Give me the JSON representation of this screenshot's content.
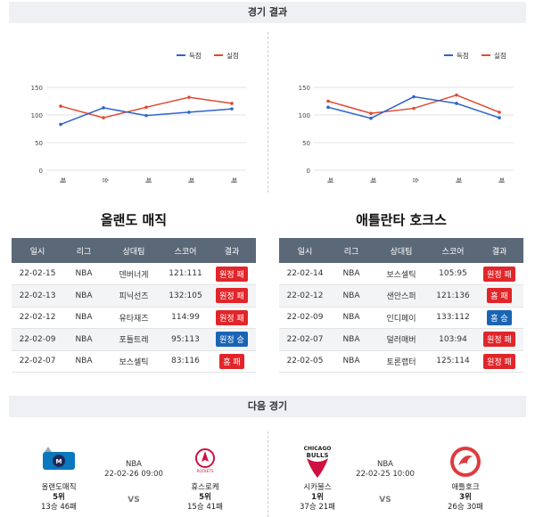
{
  "sections": {
    "results": "경기 결과",
    "next": "다음 경기"
  },
  "charts": [
    {
      "legend": {
        "score": "득점",
        "allowed": "실점"
      },
      "yticks": [
        "150",
        "100",
        "50",
        "0"
      ],
      "ylim": [
        0,
        150
      ],
      "xlabels": [
        "패",
        "승",
        "패",
        "패",
        "패"
      ],
      "score": [
        83,
        113,
        99,
        105,
        111
      ],
      "allowed": [
        116,
        95,
        114,
        132,
        121
      ]
    },
    {
      "legend": {
        "score": "득점",
        "allowed": "실점"
      },
      "yticks": [
        "150",
        "100",
        "50",
        "0"
      ],
      "ylim": [
        0,
        150
      ],
      "xlabels": [
        "패",
        "패",
        "승",
        "패",
        "패"
      ],
      "score": [
        114,
        94,
        133,
        121,
        95
      ],
      "allowed": [
        125,
        103,
        112,
        136,
        105
      ]
    }
  ],
  "chart_data": [
    {
      "type": "line",
      "x": [
        "패",
        "승",
        "패",
        "패",
        "패"
      ],
      "series": [
        {
          "name": "득점",
          "values": [
            83,
            113,
            99,
            105,
            111
          ]
        },
        {
          "name": "실점",
          "values": [
            116,
            95,
            114,
            132,
            121
          ]
        }
      ],
      "ylim": [
        0,
        150
      ],
      "legend": "top-right",
      "grid": true
    },
    {
      "type": "line",
      "x": [
        "패",
        "패",
        "승",
        "패",
        "패"
      ],
      "series": [
        {
          "name": "득점",
          "values": [
            114,
            94,
            133,
            121,
            95
          ]
        },
        {
          "name": "실점",
          "values": [
            125,
            103,
            112,
            136,
            105
          ]
        }
      ],
      "ylim": [
        0,
        150
      ],
      "legend": "top-right",
      "grid": true
    }
  ],
  "colors": {
    "score": "#2f63c9",
    "allowed": "#e04a2f",
    "lose_badge": "#e0262a",
    "win_badge": "#1a64b4"
  },
  "teams": [
    {
      "name": "올랜도 매직",
      "headers": [
        "일시",
        "리그",
        "상대팀",
        "스코어",
        "결과"
      ],
      "rows": [
        {
          "date": "22-02-15",
          "league": "NBA",
          "opponent": "덴버너게",
          "score": "121:111",
          "result": "원정 패",
          "type": "lose"
        },
        {
          "date": "22-02-13",
          "league": "NBA",
          "opponent": "피닉선즈",
          "score": "132:105",
          "result": "원정 패",
          "type": "lose"
        },
        {
          "date": "22-02-12",
          "league": "NBA",
          "opponent": "유타재즈",
          "score": "114:99",
          "result": "원정 패",
          "type": "lose"
        },
        {
          "date": "22-02-09",
          "league": "NBA",
          "opponent": "포틀트레",
          "score": "95:113",
          "result": "원정 승",
          "type": "win"
        },
        {
          "date": "22-02-07",
          "league": "NBA",
          "opponent": "보스셀틱",
          "score": "83:116",
          "result": "홈 패",
          "type": "lose"
        }
      ]
    },
    {
      "name": "애틀란타 호크스",
      "headers": [
        "일시",
        "리그",
        "상대팀",
        "스코어",
        "결과"
      ],
      "rows": [
        {
          "date": "22-02-14",
          "league": "NBA",
          "opponent": "보스셀틱",
          "score": "105:95",
          "result": "원정 패",
          "type": "lose"
        },
        {
          "date": "22-02-12",
          "league": "NBA",
          "opponent": "샌안스퍼",
          "score": "121:136",
          "result": "홈 패",
          "type": "lose"
        },
        {
          "date": "22-02-09",
          "league": "NBA",
          "opponent": "인디페이",
          "score": "133:112",
          "result": "홈 승",
          "type": "win"
        },
        {
          "date": "22-02-07",
          "league": "NBA",
          "opponent": "덜러매버",
          "score": "103:94",
          "result": "원정 패",
          "type": "lose"
        },
        {
          "date": "22-02-05",
          "league": "NBA",
          "opponent": "토론랩터",
          "score": "125:114",
          "result": "원정 패",
          "type": "lose"
        }
      ]
    }
  ],
  "next_games": [
    {
      "league": "NBA",
      "datetime": "22-02-26 09:00",
      "vs": "VS",
      "home": {
        "name": "올랜도매직",
        "rank": "5위",
        "record": "13승 46패",
        "logo": "magic-logo"
      },
      "away": {
        "name": "휴스로케",
        "rank": "5위",
        "record": "15승 41패",
        "logo": "rockets-logo"
      }
    },
    {
      "league": "NBA",
      "datetime": "22-02-25 10:00",
      "vs": "VS",
      "home": {
        "name": "시카불스",
        "rank": "1위",
        "record": "37승 21패",
        "logo": "bulls-logo"
      },
      "away": {
        "name": "애틀호크",
        "rank": "3위",
        "record": "26승 30패",
        "logo": "hawks-logo"
      }
    }
  ]
}
